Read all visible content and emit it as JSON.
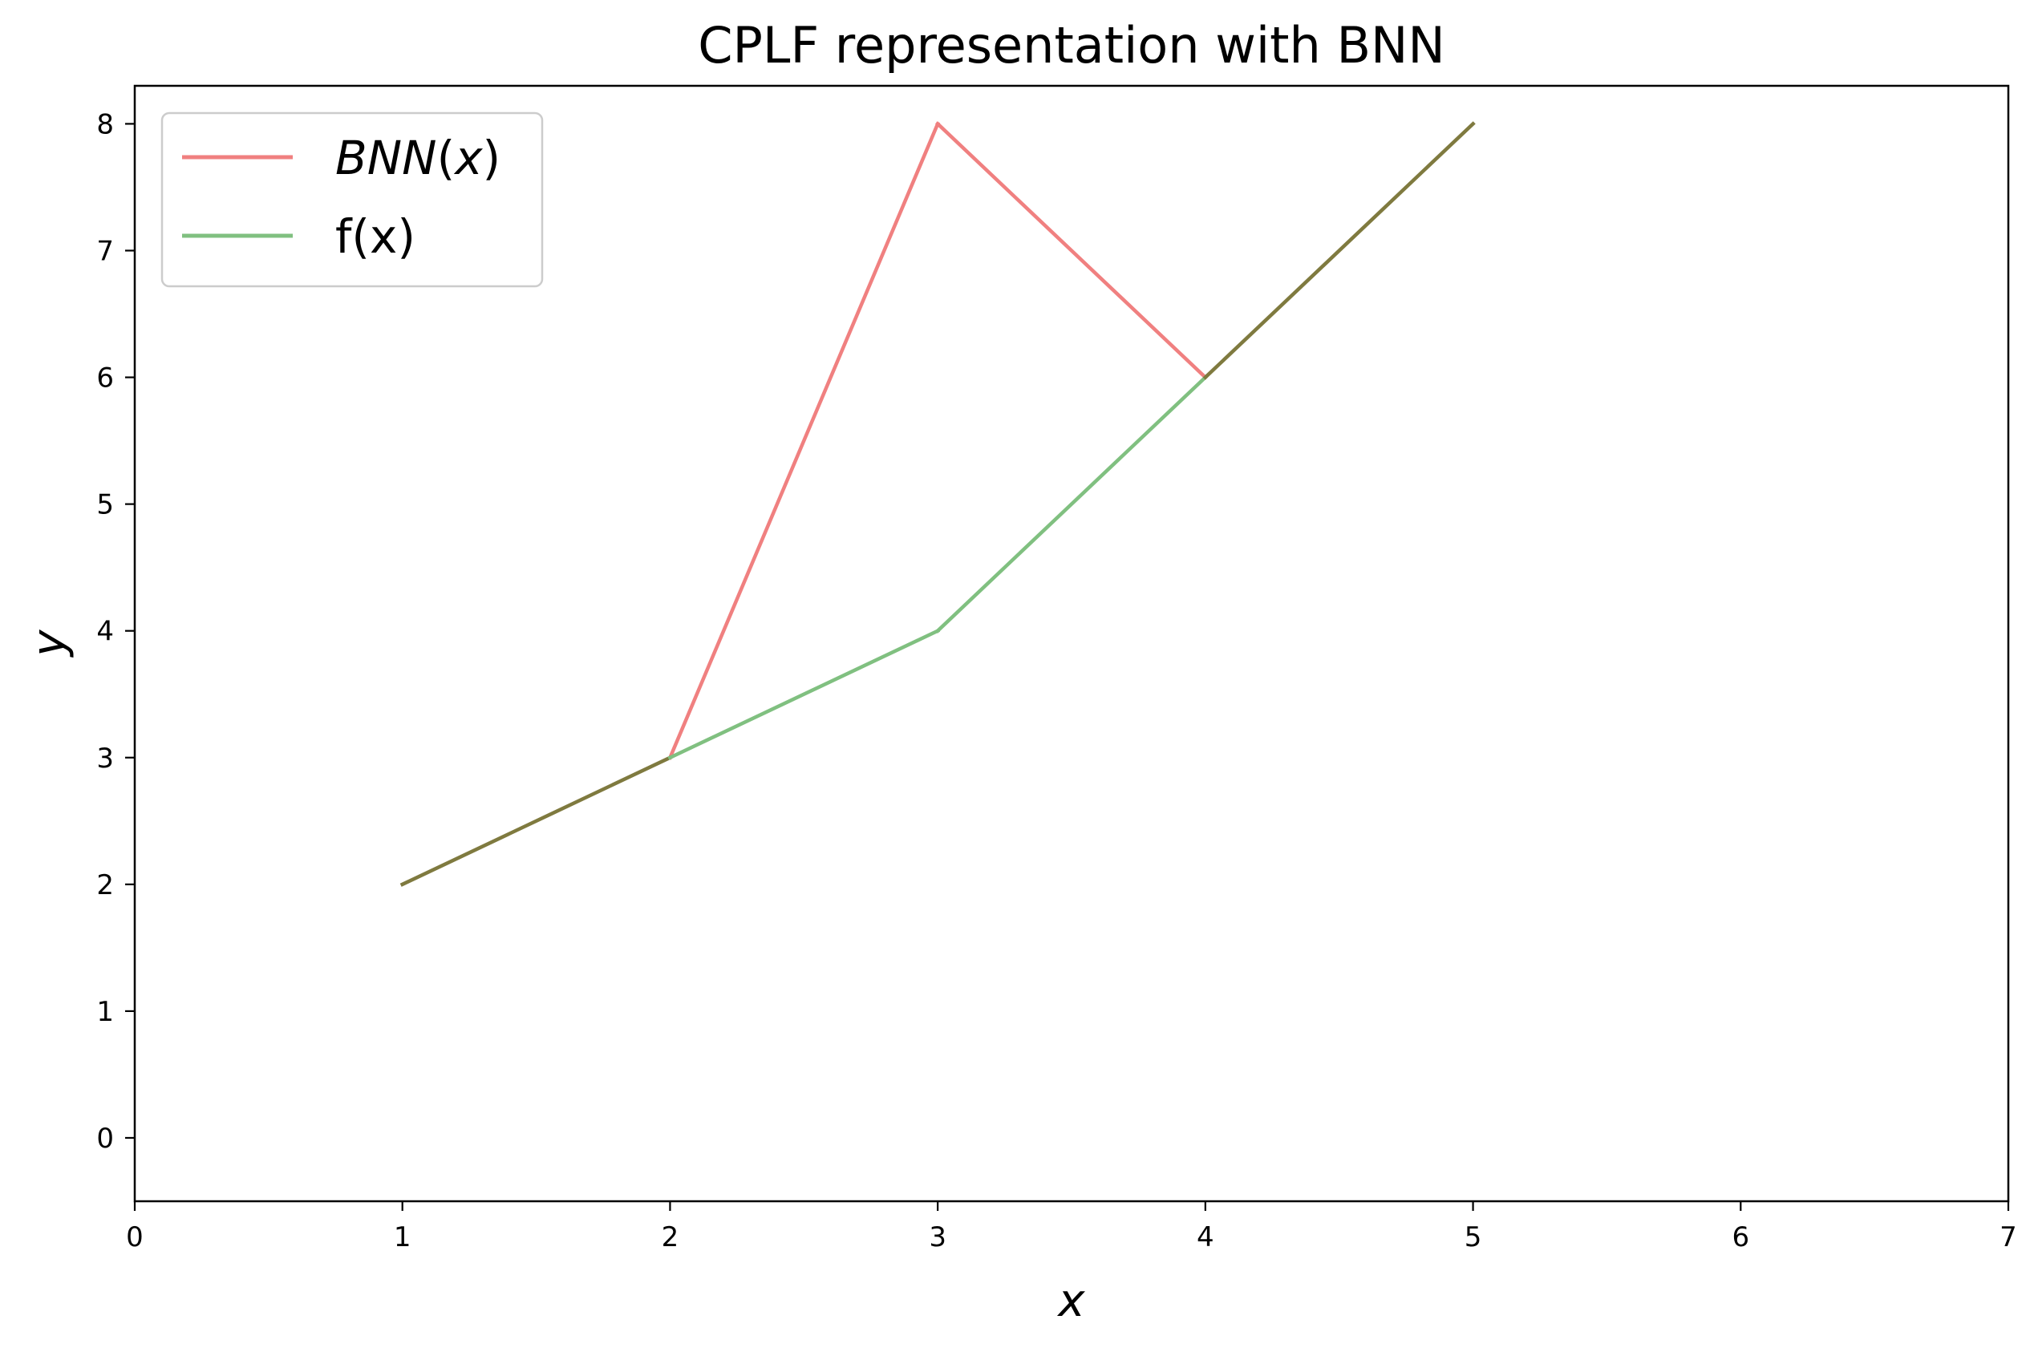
{
  "chart_data": {
    "type": "line",
    "title": "CPLF representation with BNN",
    "xlabel": "x",
    "ylabel": "y",
    "xlim": [
      0,
      7
    ],
    "ylim": [
      -0.5,
      8.3
    ],
    "xticks": [
      0,
      1,
      2,
      3,
      4,
      5,
      6,
      7
    ],
    "yticks": [
      0,
      1,
      2,
      3,
      4,
      5,
      6,
      7,
      8
    ],
    "grid": false,
    "legend_position": "top-left",
    "series": [
      {
        "key": "bnn",
        "name": "BNN(x)",
        "legend": {
          "prefix": "BNN",
          "open": "(",
          "var": "x",
          "close": ")"
        },
        "color": "#f08080",
        "x": [
          1,
          2,
          3,
          4,
          5
        ],
        "y": [
          2,
          3,
          8,
          6,
          8
        ]
      },
      {
        "key": "f",
        "name": "f(x)",
        "color": "#80c080",
        "x": [
          1,
          2,
          3,
          4,
          5
        ],
        "y": [
          2,
          3,
          4,
          6,
          8
        ]
      }
    ],
    "overlap_color": "#7f7a3f"
  }
}
